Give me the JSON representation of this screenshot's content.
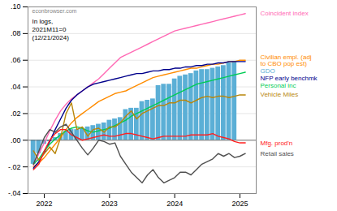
{
  "chart_data": {
    "type": "line",
    "annotations": [
      "econbrowser.com",
      "In logs,\n2021M11=0\n(12/21/2024)"
    ],
    "x": [
      2021.8333333333333,
      2021.9166666666667,
      2022,
      2022.0833333333333,
      2022.1666666666667,
      2022.25,
      2022.3333333333333,
      2022.4166666666667,
      2022.5,
      2022.5833333333333,
      2022.6666666666667,
      2022.75,
      2022.8333333333333,
      2022.9166666666667,
      2023,
      2023.0833333333333,
      2023.1666666666667,
      2023.25,
      2023.3333333333333,
      2023.4166666666667,
      2023.5,
      2023.5833333333333,
      2023.6666666666667,
      2023.75,
      2023.8333333333333,
      2023.9166666666667,
      2024,
      2024.0833333333333,
      2024.1666666666667,
      2024.25,
      2024.3333333333333,
      2024.4166666666667,
      2024.5,
      2024.5833333333333,
      2024.6666666666667,
      2024.75,
      2024.8333333333333,
      2024.9166666666667,
      2025,
      2025.0833333333333
    ],
    "xlim": [
      2021.75,
      2025.25
    ],
    "xticks": [
      2022,
      2023,
      2024,
      2025
    ],
    "ylim": [
      -0.04,
      0.1
    ],
    "yticks": [
      {
        "value": -0.04,
        "label": "-.04"
      },
      {
        "value": -0.02,
        "label": "-.02"
      },
      {
        "value": 0.0,
        "label": ".00"
      },
      {
        "value": 0.02,
        "label": ".02"
      },
      {
        "value": 0.04,
        "label": ".04"
      },
      {
        "value": 0.06,
        "label": ".06"
      },
      {
        "value": 0.08,
        "label": ".08"
      },
      {
        "value": 0.1,
        "label": ".10"
      }
    ],
    "grid": true,
    "series": [
      {
        "name": "GDO",
        "type": "bar",
        "color": "#5bafd6",
        "x": [
          2021.833,
          2021.917,
          2022.0,
          2022.083,
          2022.167,
          2022.25,
          2022.333,
          2022.417,
          2022.5,
          2022.583,
          2022.667,
          2022.75,
          2022.833,
          2022.917,
          2023.0,
          2023.083,
          2023.167,
          2023.25,
          2023.333,
          2023.417,
          2023.5,
          2023.583,
          2023.667,
          2023.75,
          2023.833,
          2023.917,
          2024.0,
          2024.083,
          2024.167,
          2024.25,
          2024.333,
          2024.417,
          2024.5,
          2024.583,
          2024.667,
          2024.75,
          2024.833,
          2024.917
        ],
        "values": [
          -0.018,
          -0.01,
          -0.003,
          -0.001,
          0.002,
          0.005,
          0.007,
          0.008,
          0.008,
          0.009,
          0.01,
          0.011,
          0.012,
          0.013,
          0.015,
          0.016,
          0.017,
          0.023,
          0.024,
          0.024,
          0.029,
          0.03,
          0.031,
          0.041,
          0.042,
          0.042,
          0.046,
          0.048,
          0.049,
          0.05,
          0.052,
          0.053,
          0.053,
          0.054,
          0.055,
          0.056,
          0.058,
          0.059
        ]
      },
      {
        "name": "Coincident index",
        "color": "#ff69b4",
        "values": [
          -0.019,
          -0.01,
          -0.002,
          0.007,
          0.015,
          0.022,
          0.027,
          0.031,
          0.034,
          0.037,
          0.04,
          0.043,
          0.046,
          0.05,
          0.054,
          0.058,
          0.062,
          0.064,
          0.066,
          0.068,
          0.07,
          0.072,
          0.074,
          0.076,
          0.078,
          0.08,
          0.082,
          0.083,
          0.084,
          0.085,
          0.086,
          0.087,
          0.088,
          0.089,
          0.09,
          0.091,
          0.092,
          0.093,
          0.094,
          0.095
        ]
      },
      {
        "name": "Civilian empl. (adj\nto CBO pop est)",
        "color": "#ff8c00",
        "values": [
          -0.02,
          -0.017,
          -0.013,
          -0.008,
          -0.003,
          0.002,
          0.008,
          0.013,
          0.017,
          0.02,
          0.023,
          0.026,
          0.029,
          0.031,
          0.033,
          0.035,
          0.036,
          0.037,
          0.039,
          0.041,
          0.043,
          0.045,
          0.047,
          0.048,
          0.049,
          0.05,
          0.051,
          0.052,
          0.053,
          0.054,
          0.054,
          0.055,
          0.056,
          0.057,
          0.057,
          0.058,
          0.059,
          0.059,
          0.06,
          0.06
        ]
      },
      {
        "name": "NFP early benchmk",
        "color": "#00008b",
        "values": [
          -0.021,
          -0.016,
          -0.009,
          -0.001,
          0.008,
          0.016,
          0.024,
          0.03,
          0.034,
          0.037,
          0.04,
          0.042,
          0.043,
          0.044,
          0.045,
          0.046,
          0.047,
          0.048,
          0.049,
          0.05,
          0.05,
          0.051,
          0.052,
          0.052,
          0.053,
          0.053,
          0.054,
          0.054,
          0.055,
          0.055,
          0.056,
          0.056,
          0.057,
          0.057,
          0.058,
          0.058,
          0.059,
          0.059,
          0.059,
          0.059
        ]
      },
      {
        "name": "Personal inc",
        "color": "#00cc55",
        "values": [
          -0.018,
          -0.014,
          -0.008,
          -0.003,
          0.001,
          0.004,
          0.007,
          0.009,
          0.01,
          0.009,
          0.007,
          0.006,
          0.007,
          0.008,
          0.009,
          0.011,
          0.013,
          0.015,
          0.018,
          0.02,
          0.022,
          0.024,
          0.026,
          0.028,
          0.03,
          0.032,
          0.034,
          0.036,
          0.038,
          0.04,
          0.042,
          0.043,
          0.044,
          0.045,
          0.046,
          0.047,
          0.048,
          0.049,
          0.05,
          0.051
        ]
      },
      {
        "name": "Vehicle Miles",
        "color": "#b8860b",
        "values": [
          -0.008,
          -0.015,
          -0.01,
          -0.005,
          -0.01,
          0.002,
          0.02,
          0.028,
          0.008,
          0.01,
          0.003,
          0.008,
          0.009,
          0.006,
          0.01,
          0.01,
          0.013,
          0.018,
          0.022,
          0.016,
          0.02,
          0.022,
          0.024,
          0.026,
          0.026,
          0.028,
          0.028,
          0.03,
          0.03,
          0.028,
          0.03,
          0.032,
          0.033,
          0.032,
          0.033,
          0.033,
          0.032,
          0.033,
          0.034,
          0.034
        ]
      },
      {
        "name": "Mfg. prod'n",
        "color": "#ff2020",
        "values": [
          -0.022,
          -0.018,
          -0.008,
          0.0,
          0.005,
          0.008,
          0.008,
          0.004,
          0.002,
          0.0,
          0.001,
          0.002,
          0.003,
          0.004,
          0.003,
          0.003,
          0.004,
          0.005,
          0.005,
          0.004,
          0.003,
          0.002,
          0.001,
          0.002,
          0.003,
          0.003,
          0.003,
          0.003,
          0.003,
          0.004,
          0.004,
          0.004,
          0.004,
          0.005,
          0.003,
          0.002,
          0.001,
          -0.001,
          -0.002,
          -0.002
        ]
      },
      {
        "name": "Retail sales",
        "color": "#505050",
        "values": [
          -0.018,
          -0.008,
          0.002,
          0.008,
          0.006,
          0.01,
          0.012,
          0.006,
          0.0,
          -0.006,
          -0.011,
          -0.006,
          0.0,
          -0.001,
          -0.003,
          -0.002,
          -0.012,
          -0.018,
          -0.024,
          -0.028,
          -0.032,
          -0.026,
          -0.022,
          -0.028,
          -0.032,
          -0.03,
          -0.028,
          -0.024,
          -0.024,
          -0.026,
          -0.022,
          -0.018,
          -0.016,
          -0.014,
          -0.01,
          -0.012,
          -0.01,
          -0.013,
          -0.012,
          -0.01
        ]
      }
    ]
  }
}
